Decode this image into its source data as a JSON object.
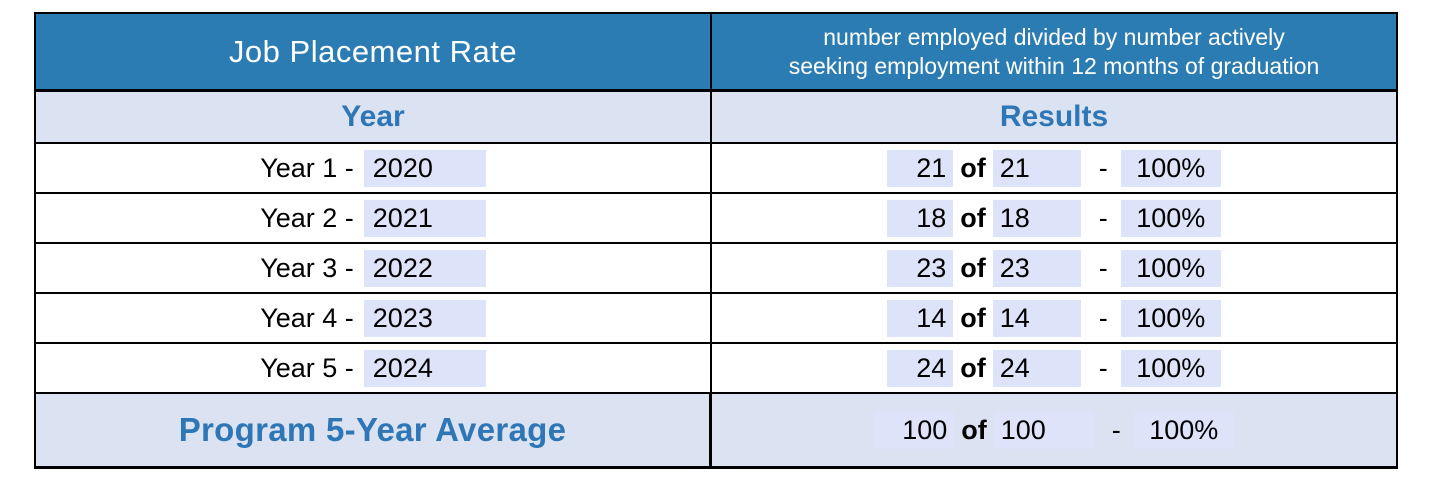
{
  "header": {
    "title": "Job Placement Rate",
    "definition_line1": "number employed divided by number actively",
    "definition_line2": "seeking employment within 12 months of graduation"
  },
  "columns": {
    "year_label": "Year",
    "results_label": "Results"
  },
  "separators": {
    "of": "of",
    "dash": "-"
  },
  "rows": [
    {
      "label_prefix": "Year 1 -",
      "year": "2020",
      "numerator": "21",
      "denominator": "21",
      "rate": "100%"
    },
    {
      "label_prefix": "Year 2 -",
      "year": "2021",
      "numerator": "18",
      "denominator": "18",
      "rate": "100%"
    },
    {
      "label_prefix": "Year 3 -",
      "year": "2022",
      "numerator": "23",
      "denominator": "23",
      "rate": "100%"
    },
    {
      "label_prefix": "Year 4 -",
      "year": "2023",
      "numerator": "14",
      "denominator": "14",
      "rate": "100%"
    },
    {
      "label_prefix": "Year 5 -",
      "year": "2024",
      "numerator": "24",
      "denominator": "24",
      "rate": "100%"
    }
  ],
  "footer": {
    "label": "Program 5-Year Average",
    "numerator": "100",
    "denominator": "100",
    "rate": "100%"
  },
  "colors": {
    "header_bg": "#2C7CB4",
    "header_text": "#FFFFFF",
    "subheader_bg": "#DBE2F1",
    "accent_text": "#2E76B5",
    "field_highlight_bg": "#DDE3F9",
    "border": "#000000"
  }
}
